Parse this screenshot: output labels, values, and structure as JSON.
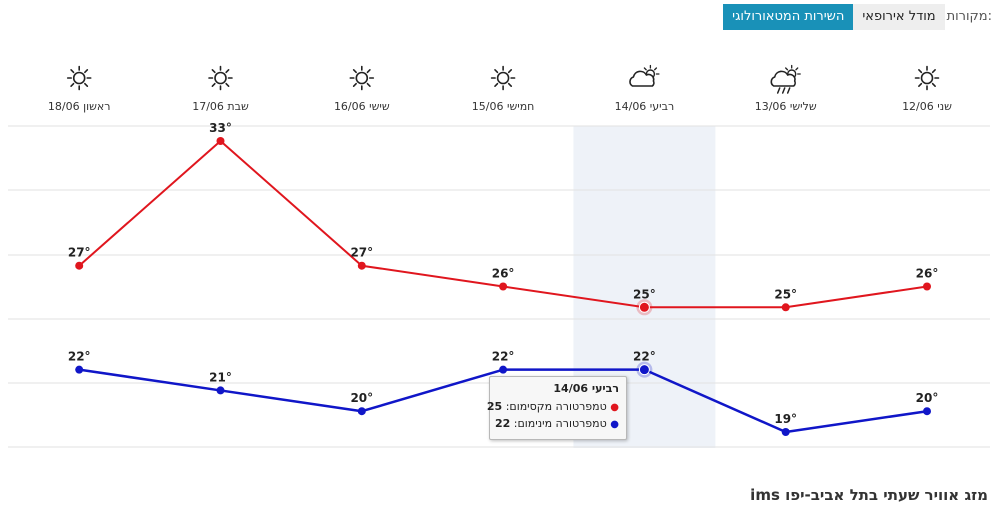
{
  "sources": {
    "label": "מקורות:",
    "buttons": [
      {
        "label": "מודל אירופאי",
        "active": false
      },
      {
        "label": "השירות המטאורולוגי",
        "active": true
      }
    ]
  },
  "chart_data": {
    "type": "line",
    "categories": [
      "שני 12/06",
      "שלישי 13/06",
      "רביעי 14/06",
      "חמישי 15/06",
      "שישי 16/06",
      "שבת 17/06",
      "ראשון 18/06"
    ],
    "icons": [
      "sun-icon",
      "cloud-rain-sun-icon",
      "cloud-sun-icon",
      "sun-icon",
      "sun-icon",
      "sun-icon",
      "sun-icon"
    ],
    "series": [
      {
        "name": "טמפרטורה מקסימום",
        "color": "#e0161e",
        "values": [
          26,
          25,
          25,
          26,
          27,
          33,
          27
        ]
      },
      {
        "name": "טמפרטורה מינימום",
        "color": "#1016c8",
        "values": [
          20,
          19,
          22,
          22,
          20,
          21,
          22
        ]
      }
    ],
    "value_suffix": "°",
    "grid": true,
    "highlight_index": 2,
    "highlight_color": "#eef2f8"
  },
  "tooltip": {
    "title": "רביעי 14/06",
    "max_label": "טמפרטורה מקסימום:",
    "max_value": "25",
    "min_label": "טמפרטורה מינימום:",
    "min_value": "22"
  },
  "section_title": "מזג אוויר שעתי בתל אביב-יפו ims"
}
